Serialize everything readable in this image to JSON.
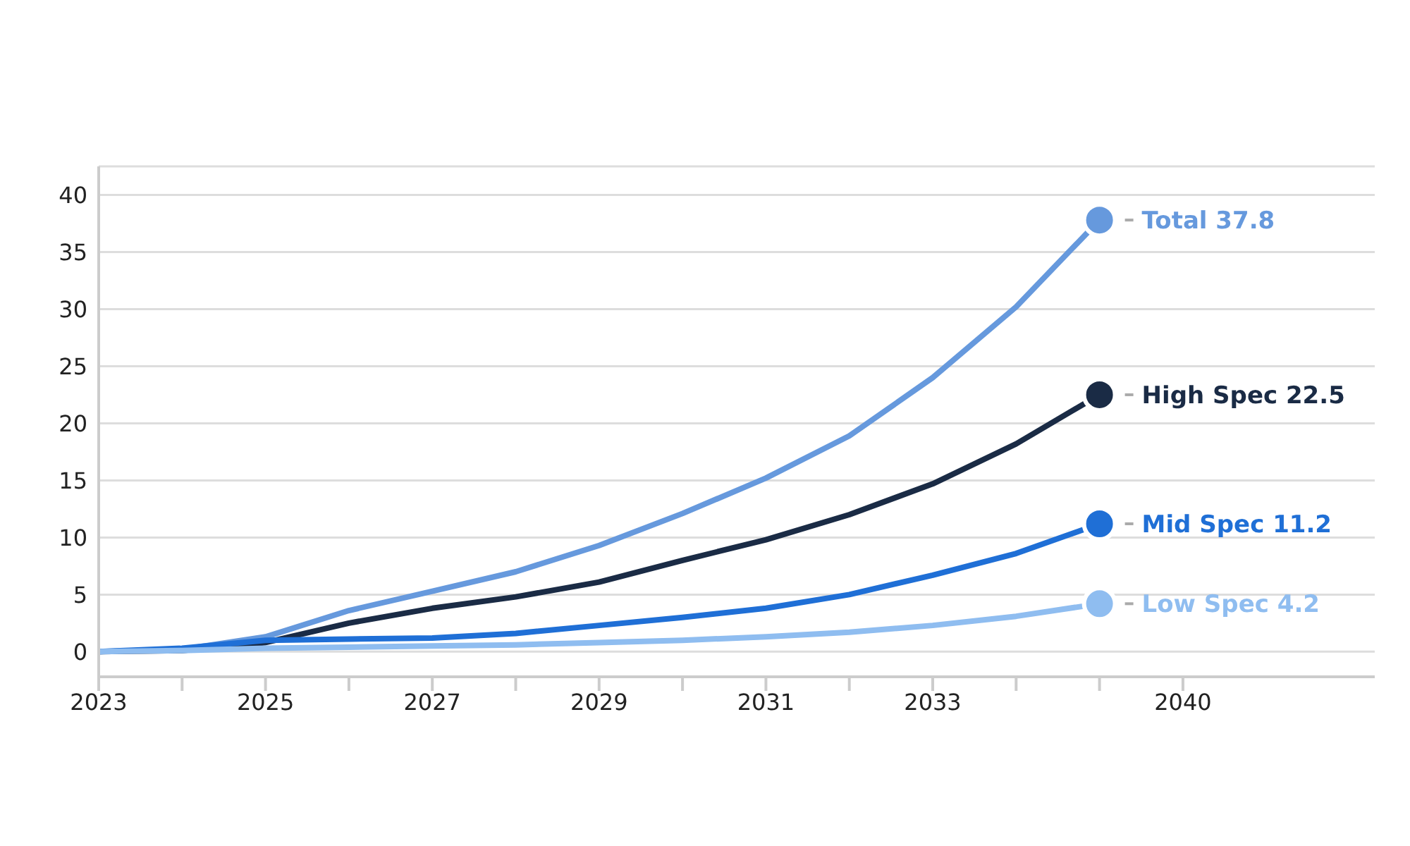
{
  "chart_data": {
    "type": "line",
    "categories": [
      "2023",
      null,
      "2025",
      null,
      "2027",
      null,
      "2029",
      null,
      "2031",
      null,
      "2033",
      null,
      null,
      "2040"
    ],
    "series": [
      {
        "name": "Total",
        "color": "#6699dd",
        "values": [
          0,
          0.2,
          1.3,
          3.6,
          5.3,
          7.0,
          9.3,
          12.1,
          15.2,
          18.9,
          24.0,
          30.2,
          37.8,
          null
        ],
        "value_labels": [
          null,
          null,
          null,
          null,
          null,
          null,
          null,
          null,
          null,
          null,
          null,
          null,
          "37.8",
          null
        ]
      },
      {
        "name": "High Spec",
        "color": "#1a2b45",
        "values": [
          0,
          0.1,
          0.8,
          2.5,
          3.8,
          4.8,
          6.1,
          8.0,
          9.8,
          12.0,
          14.7,
          18.2,
          22.5,
          null
        ],
        "value_labels": [
          null,
          null,
          null,
          null,
          null,
          null,
          null,
          null,
          null,
          null,
          null,
          null,
          "22.5",
          null
        ]
      },
      {
        "name": "Mid Spec",
        "color": "#1f6fd6",
        "values": [
          0,
          0.3,
          1.0,
          1.1,
          1.2,
          1.6,
          2.3,
          3.0,
          3.8,
          5.0,
          6.7,
          8.6,
          11.2,
          null
        ],
        "value_labels": [
          null,
          null,
          null,
          null,
          null,
          null,
          null,
          null,
          null,
          null,
          null,
          null,
          "11.2",
          null
        ]
      },
      {
        "name": "Low Spec",
        "color": "#8fbdf0",
        "values": [
          0,
          0.1,
          0.3,
          0.4,
          0.5,
          0.6,
          0.8,
          1.0,
          1.3,
          1.7,
          2.3,
          3.1,
          4.2,
          null
        ],
        "value_labels": [
          null,
          null,
          null,
          null,
          null,
          null,
          null,
          null,
          null,
          null,
          null,
          null,
          "4.2",
          null
        ]
      }
    ],
    "ylim": [
      -2.2,
      42.5
    ],
    "yticks": [
      0,
      5,
      10,
      15,
      20,
      25,
      30,
      35,
      40
    ],
    "grid": "y",
    "marker": "none",
    "line_style": "solid"
  }
}
